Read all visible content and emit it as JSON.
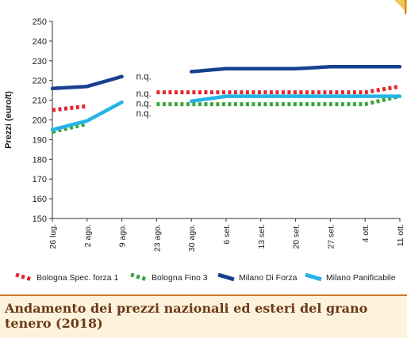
{
  "chart_data": {
    "type": "line",
    "title": "Andamento dei prezzi nazionali ed esteri del grano tenero (2018)",
    "xlabel": "",
    "ylabel": "Prezzi (euro/t)",
    "ylim": [
      150,
      250
    ],
    "yticks": [
      150,
      160,
      170,
      180,
      190,
      200,
      210,
      220,
      230,
      240,
      250
    ],
    "categories": [
      "26 lug.",
      "2 ago.",
      "9 ago.",
      "23 ago.",
      "30 ago.",
      "6 set.",
      "13 set.",
      "20 set.",
      "27 set.",
      "4 ott.",
      "11 ott."
    ],
    "grid": false,
    "legend_position": "bottom",
    "series": [
      {
        "name": "Bologna Spec. forza 1",
        "color": "#e4262c",
        "style": "dotted",
        "values": [
          205,
          207,
          null,
          214,
          214,
          214,
          214,
          214,
          214,
          214,
          217
        ]
      },
      {
        "name": "Bologna Fino 3",
        "color": "#3aa43a",
        "style": "dotted",
        "values": [
          194,
          198,
          null,
          208,
          208,
          208,
          208,
          208,
          208,
          208,
          212
        ]
      },
      {
        "name": "Milano Di Forza",
        "color": "#17418f",
        "style": "solid",
        "values": [
          216,
          217,
          222,
          null,
          224.5,
          226,
          226,
          226,
          227,
          227,
          227
        ]
      },
      {
        "name": "Milano Panificabile",
        "color": "#24b4e6",
        "style": "solid",
        "values": [
          195,
          199.5,
          209,
          null,
          209.5,
          212,
          212,
          212,
          212,
          212,
          212
        ]
      }
    ],
    "annotations": [
      {
        "text": "n.q.",
        "x": "9 ago.",
        "y": 222
      },
      {
        "text": "n.q.",
        "x": "9 ago.",
        "y": 213.5
      },
      {
        "text": "n.q.",
        "x": "9 ago.",
        "y": 208.5
      },
      {
        "text": "n.q.",
        "x": "9 ago.",
        "y": 203.5
      }
    ]
  }
}
